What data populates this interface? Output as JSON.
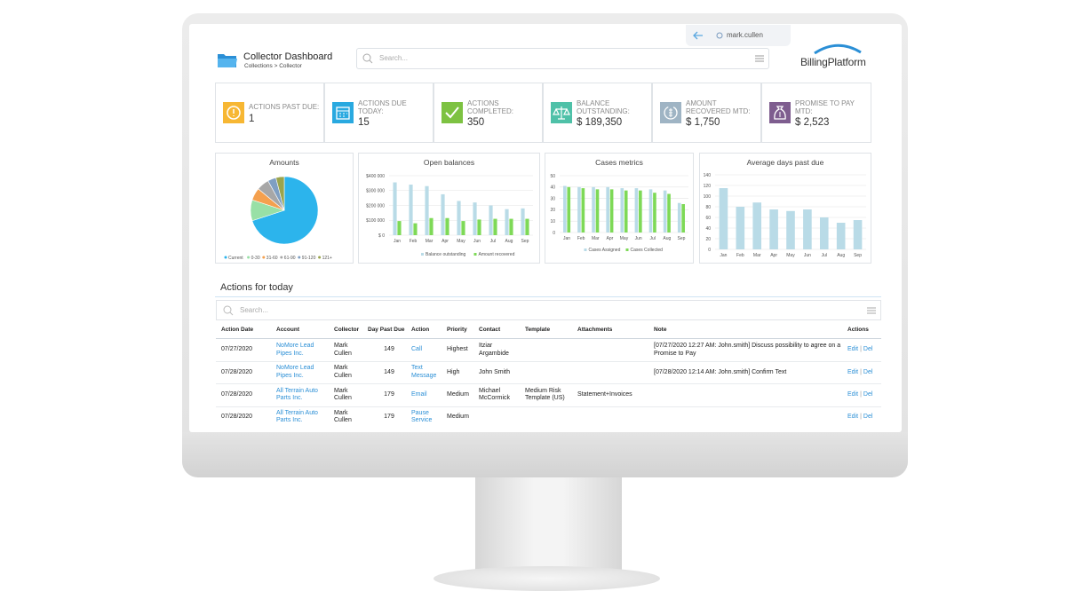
{
  "header": {
    "title": "Collector Dashboard",
    "breadcrumb": "Collections > Collector",
    "search_placeholder": "Search...",
    "user": "mark.cullen",
    "logo": "BillingPlatform"
  },
  "kpis": [
    {
      "label": "ACTIONS PAST DUE:",
      "value": "1"
    },
    {
      "label": "ACTIONS DUE TODAY:",
      "value": "15"
    },
    {
      "label": "ACTIONS COMPLETED:",
      "value": "350"
    },
    {
      "label": "BALANCE OUTSTANDING:",
      "value": "$ 189,350"
    },
    {
      "label": "AMOUNT RECOVERED MTD:",
      "value": "$ 1,750"
    },
    {
      "label": "PROMISE TO PAY MTD:",
      "value": "$ 2,523"
    }
  ],
  "chart_data": [
    {
      "type": "pie",
      "title": "Amounts",
      "categories": [
        "Current",
        "0-30",
        "31-60",
        "61-90",
        "91-120",
        "121+"
      ],
      "values": [
        70,
        10,
        6,
        6,
        4,
        4
      ],
      "colors": [
        "#2cb4ec",
        "#98e0a6",
        "#f4a04e",
        "#a7a7a7",
        "#7f9fc2",
        "#9aa44c"
      ]
    },
    {
      "type": "bar",
      "title": "Open balances",
      "categories": [
        "Jan",
        "Feb",
        "Mar",
        "Apr",
        "May",
        "Jun",
        "Jul",
        "Aug",
        "Sep"
      ],
      "series": [
        {
          "name": "Balance outstanding",
          "color": "#b9dbe7",
          "values": [
            355000,
            340000,
            330000,
            275000,
            230000,
            220000,
            200000,
            175000,
            180000
          ]
        },
        {
          "name": "Amount recovered",
          "color": "#7ed957",
          "values": [
            95000,
            80000,
            115000,
            115000,
            95000,
            105000,
            110000,
            110000,
            110000
          ]
        }
      ],
      "ylim": [
        0,
        400000
      ],
      "yticks": [
        {
          "value": 0,
          "label": "$ 0"
        },
        {
          "value": 100000,
          "label": "$100 000"
        },
        {
          "value": 200000,
          "label": "$200 000"
        },
        {
          "value": 300000,
          "label": "$300 000"
        },
        {
          "value": 400000,
          "label": "$400 000"
        }
      ],
      "grid": true
    },
    {
      "type": "bar",
      "title": "Cases metrics",
      "categories": [
        "Jan",
        "Feb",
        "Mar",
        "Apr",
        "May",
        "Jun",
        "Jul",
        "Aug",
        "Sep"
      ],
      "series": [
        {
          "name": "Cases Assigned",
          "color": "#b9dbe7",
          "values": [
            41,
            40,
            40,
            40,
            39,
            39,
            38,
            37,
            26
          ]
        },
        {
          "name": "Cases Collected",
          "color": "#7ed957",
          "values": [
            40,
            39,
            38,
            38,
            37,
            37,
            35,
            34,
            25
          ]
        }
      ],
      "ylim": [
        0,
        50
      ],
      "yticks": [
        0,
        10,
        20,
        30,
        40,
        50
      ],
      "grid": true
    },
    {
      "type": "bar",
      "title": "Average days past due",
      "categories": [
        "Jan",
        "Feb",
        "Mar",
        "Apr",
        "May",
        "Jun",
        "Jul",
        "Aug",
        "Sep"
      ],
      "values": [
        115,
        80,
        88,
        75,
        72,
        75,
        60,
        50,
        55
      ],
      "color": "#b9dbe7",
      "ylim": [
        0,
        140
      ],
      "yticks": [
        0,
        20,
        40,
        60,
        80,
        100,
        120,
        140
      ],
      "grid": true
    }
  ],
  "table": {
    "title": "Actions for today",
    "search_placeholder": "Search...",
    "columns": [
      "Action Date",
      "Account",
      "Collector",
      "Day Past Due",
      "Action",
      "Priority",
      "Contact",
      "Template",
      "Attachments",
      "Note",
      "Actions"
    ],
    "rows": [
      [
        "07/27/2020",
        "NoMore Lead Pipes Inc.",
        "Mark Cullen",
        "149",
        "Call",
        "Highest",
        "Itziar Argambide",
        null,
        null,
        "[07/27/2020 12:27 AM: John.smith] Discuss possibility to agree on a Promise to Pay",
        [
          "Edit",
          "Del"
        ]
      ],
      [
        "07/28/2020",
        "NoMore Lead Pipes Inc.",
        "Mark Cullen",
        "149",
        "Text Message",
        "High",
        "John Smith",
        null,
        null,
        "[07/28/2020 12:14 AM: John.smith] Confirm Text",
        [
          "Edit",
          "Del"
        ]
      ],
      [
        "07/28/2020",
        "All Terrain Auto Parts Inc.",
        "Mark Cullen",
        "179",
        "Email",
        "Medium",
        "Michael McCormick",
        "Medium Risk Template (US)",
        "Statement+Invoices",
        null,
        [
          "Edit",
          "Del"
        ]
      ],
      [
        "07/28/2020",
        "All Terrain Auto Parts Inc.",
        "Mark Cullen",
        "179",
        "Pause Service",
        "Medium",
        null,
        null,
        null,
        null,
        [
          "Edit",
          "Del"
        ]
      ]
    ]
  }
}
